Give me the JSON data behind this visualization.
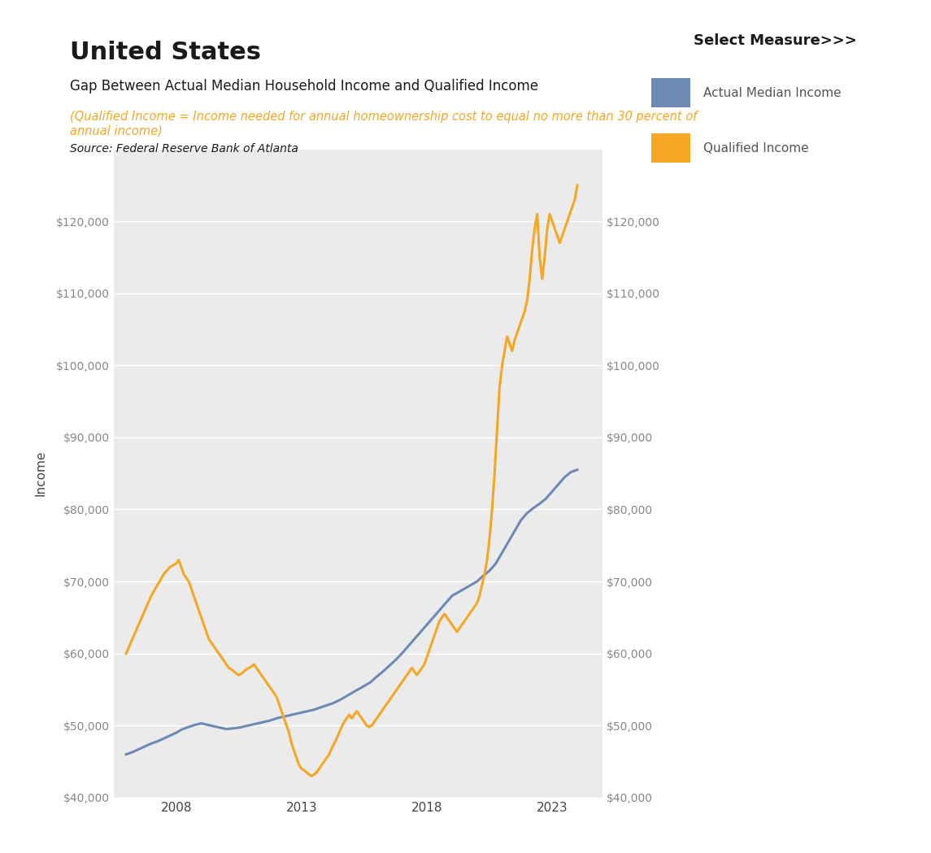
{
  "title_main": "United States",
  "title_sub": "Gap Between Actual Median Household Income and Qualified Income",
  "title_italic": "(Qualified Income = Income needed for annual homeownership cost to equal no more than 30 percent of\nannual income)",
  "title_source": "Source: Federal Reserve Bank of Atlanta",
  "legend_title": "Select Measure>>>",
  "legend_items": [
    "Actual Median Income",
    "Qualified Income"
  ],
  "legend_colors": [
    "#6d8ab5",
    "#f5a623"
  ],
  "ylabel": "Income",
  "background_plot": "#ebebeb",
  "background_fig": "#ffffff",
  "grid_color": "#ffffff",
  "ylim": [
    40000,
    130000
  ],
  "yticks": [
    40000,
    50000,
    60000,
    70000,
    80000,
    90000,
    100000,
    110000,
    120000
  ],
  "xlim": [
    2005.5,
    2025.0
  ],
  "xticks": [
    2008,
    2013,
    2018,
    2023
  ],
  "actual_median": {
    "years": [
      2006.0,
      2006.25,
      2006.5,
      2006.75,
      2007.0,
      2007.25,
      2007.5,
      2007.75,
      2008.0,
      2008.25,
      2008.5,
      2008.75,
      2009.0,
      2009.25,
      2009.5,
      2009.75,
      2010.0,
      2010.25,
      2010.5,
      2010.75,
      2011.0,
      2011.25,
      2011.5,
      2011.75,
      2012.0,
      2012.25,
      2012.5,
      2012.75,
      2013.0,
      2013.25,
      2013.5,
      2013.75,
      2014.0,
      2014.25,
      2014.5,
      2014.75,
      2015.0,
      2015.25,
      2015.5,
      2015.75,
      2016.0,
      2016.25,
      2016.5,
      2016.75,
      2017.0,
      2017.25,
      2017.5,
      2017.75,
      2018.0,
      2018.25,
      2018.5,
      2018.75,
      2019.0,
      2019.25,
      2019.5,
      2019.75,
      2020.0,
      2020.25,
      2020.5,
      2020.75,
      2021.0,
      2021.25,
      2021.5,
      2021.75,
      2022.0,
      2022.25,
      2022.5,
      2022.75,
      2023.0,
      2023.25,
      2023.5,
      2023.75,
      2024.0
    ],
    "values": [
      46000,
      46300,
      46700,
      47100,
      47500,
      47800,
      48200,
      48600,
      49000,
      49500,
      49800,
      50100,
      50300,
      50100,
      49900,
      49700,
      49500,
      49600,
      49700,
      49900,
      50100,
      50300,
      50500,
      50700,
      51000,
      51200,
      51400,
      51600,
      51800,
      52000,
      52200,
      52500,
      52800,
      53100,
      53500,
      54000,
      54500,
      55000,
      55500,
      56000,
      56800,
      57500,
      58300,
      59100,
      60000,
      61000,
      62000,
      63000,
      64000,
      65000,
      66000,
      67000,
      68000,
      68500,
      69000,
      69500,
      70000,
      70800,
      71500,
      72500,
      74000,
      75500,
      77000,
      78500,
      79500,
      80200,
      80800,
      81500,
      82500,
      83500,
      84500,
      85200,
      85500
    ]
  },
  "qualified_income": {
    "years": [
      2006.0,
      2006.25,
      2006.5,
      2006.75,
      2007.0,
      2007.25,
      2007.5,
      2007.75,
      2008.0,
      2008.1,
      2008.2,
      2008.3,
      2008.4,
      2008.5,
      2008.6,
      2008.7,
      2008.8,
      2008.9,
      2009.0,
      2009.1,
      2009.2,
      2009.3,
      2009.4,
      2009.5,
      2009.6,
      2009.7,
      2009.8,
      2009.9,
      2010.0,
      2010.1,
      2010.2,
      2010.3,
      2010.4,
      2010.5,
      2010.6,
      2010.7,
      2010.8,
      2010.9,
      2011.0,
      2011.1,
      2011.2,
      2011.3,
      2011.4,
      2011.5,
      2011.6,
      2011.7,
      2011.8,
      2011.9,
      2012.0,
      2012.1,
      2012.2,
      2012.3,
      2012.4,
      2012.5,
      2012.6,
      2012.7,
      2012.8,
      2012.9,
      2013.0,
      2013.1,
      2013.2,
      2013.3,
      2013.4,
      2013.5,
      2013.6,
      2013.7,
      2013.8,
      2013.9,
      2014.0,
      2014.1,
      2014.2,
      2014.3,
      2014.4,
      2014.5,
      2014.6,
      2014.7,
      2014.8,
      2014.9,
      2015.0,
      2015.1,
      2015.2,
      2015.3,
      2015.4,
      2015.5,
      2015.6,
      2015.7,
      2015.8,
      2015.9,
      2016.0,
      2016.1,
      2016.2,
      2016.3,
      2016.4,
      2016.5,
      2016.6,
      2016.7,
      2016.8,
      2016.9,
      2017.0,
      2017.1,
      2017.2,
      2017.3,
      2017.4,
      2017.5,
      2017.6,
      2017.7,
      2017.8,
      2017.9,
      2018.0,
      2018.1,
      2018.2,
      2018.3,
      2018.4,
      2018.5,
      2018.6,
      2018.7,
      2018.8,
      2018.9,
      2019.0,
      2019.1,
      2019.2,
      2019.3,
      2019.4,
      2019.5,
      2019.6,
      2019.7,
      2019.8,
      2019.9,
      2020.0,
      2020.1,
      2020.2,
      2020.3,
      2020.4,
      2020.5,
      2020.6,
      2020.7,
      2020.8,
      2020.9,
      2021.0,
      2021.1,
      2021.2,
      2021.3,
      2021.4,
      2021.5,
      2021.6,
      2021.7,
      2021.8,
      2021.9,
      2022.0,
      2022.1,
      2022.2,
      2022.3,
      2022.4,
      2022.5,
      2022.6,
      2022.7,
      2022.8,
      2022.9,
      2023.0,
      2023.1,
      2023.2,
      2023.3,
      2023.4,
      2023.5,
      2023.6,
      2023.7,
      2023.8,
      2023.9,
      2024.0
    ],
    "values": [
      60000,
      62000,
      64000,
      66000,
      68000,
      69500,
      71000,
      72000,
      72500,
      73000,
      72000,
      71000,
      70500,
      70000,
      69000,
      68000,
      67000,
      66000,
      65000,
      64000,
      63000,
      62000,
      61500,
      61000,
      60500,
      60000,
      59500,
      59000,
      58500,
      58000,
      57800,
      57500,
      57200,
      57000,
      57200,
      57500,
      57800,
      58000,
      58200,
      58500,
      58000,
      57500,
      57000,
      56500,
      56000,
      55500,
      55000,
      54500,
      54000,
      53000,
      52000,
      51000,
      50000,
      49000,
      47500,
      46500,
      45500,
      44500,
      44000,
      43800,
      43500,
      43200,
      43000,
      43200,
      43500,
      44000,
      44500,
      45000,
      45500,
      46000,
      46800,
      47500,
      48200,
      49000,
      49800,
      50500,
      51000,
      51500,
      51000,
      51500,
      52000,
      51500,
      51000,
      50500,
      50000,
      49800,
      50000,
      50500,
      51000,
      51500,
      52000,
      52500,
      53000,
      53500,
      54000,
      54500,
      55000,
      55500,
      56000,
      56500,
      57000,
      57500,
      58000,
      57500,
      57000,
      57500,
      58000,
      58500,
      59500,
      60500,
      61500,
      62500,
      63500,
      64500,
      65000,
      65500,
      65000,
      64500,
      64000,
      63500,
      63000,
      63500,
      64000,
      64500,
      65000,
      65500,
      66000,
      66500,
      67000,
      68000,
      69500,
      71000,
      73000,
      76000,
      80000,
      85000,
      91000,
      97000,
      100000,
      102000,
      104000,
      103000,
      102000,
      103500,
      104500,
      105500,
      106500,
      107500,
      109000,
      112000,
      116000,
      119000,
      121000,
      115000,
      112000,
      115000,
      119000,
      121000,
      120000,
      119000,
      118000,
      117000,
      118000,
      119000,
      120000,
      121000,
      122000,
      123000,
      125000
    ]
  }
}
